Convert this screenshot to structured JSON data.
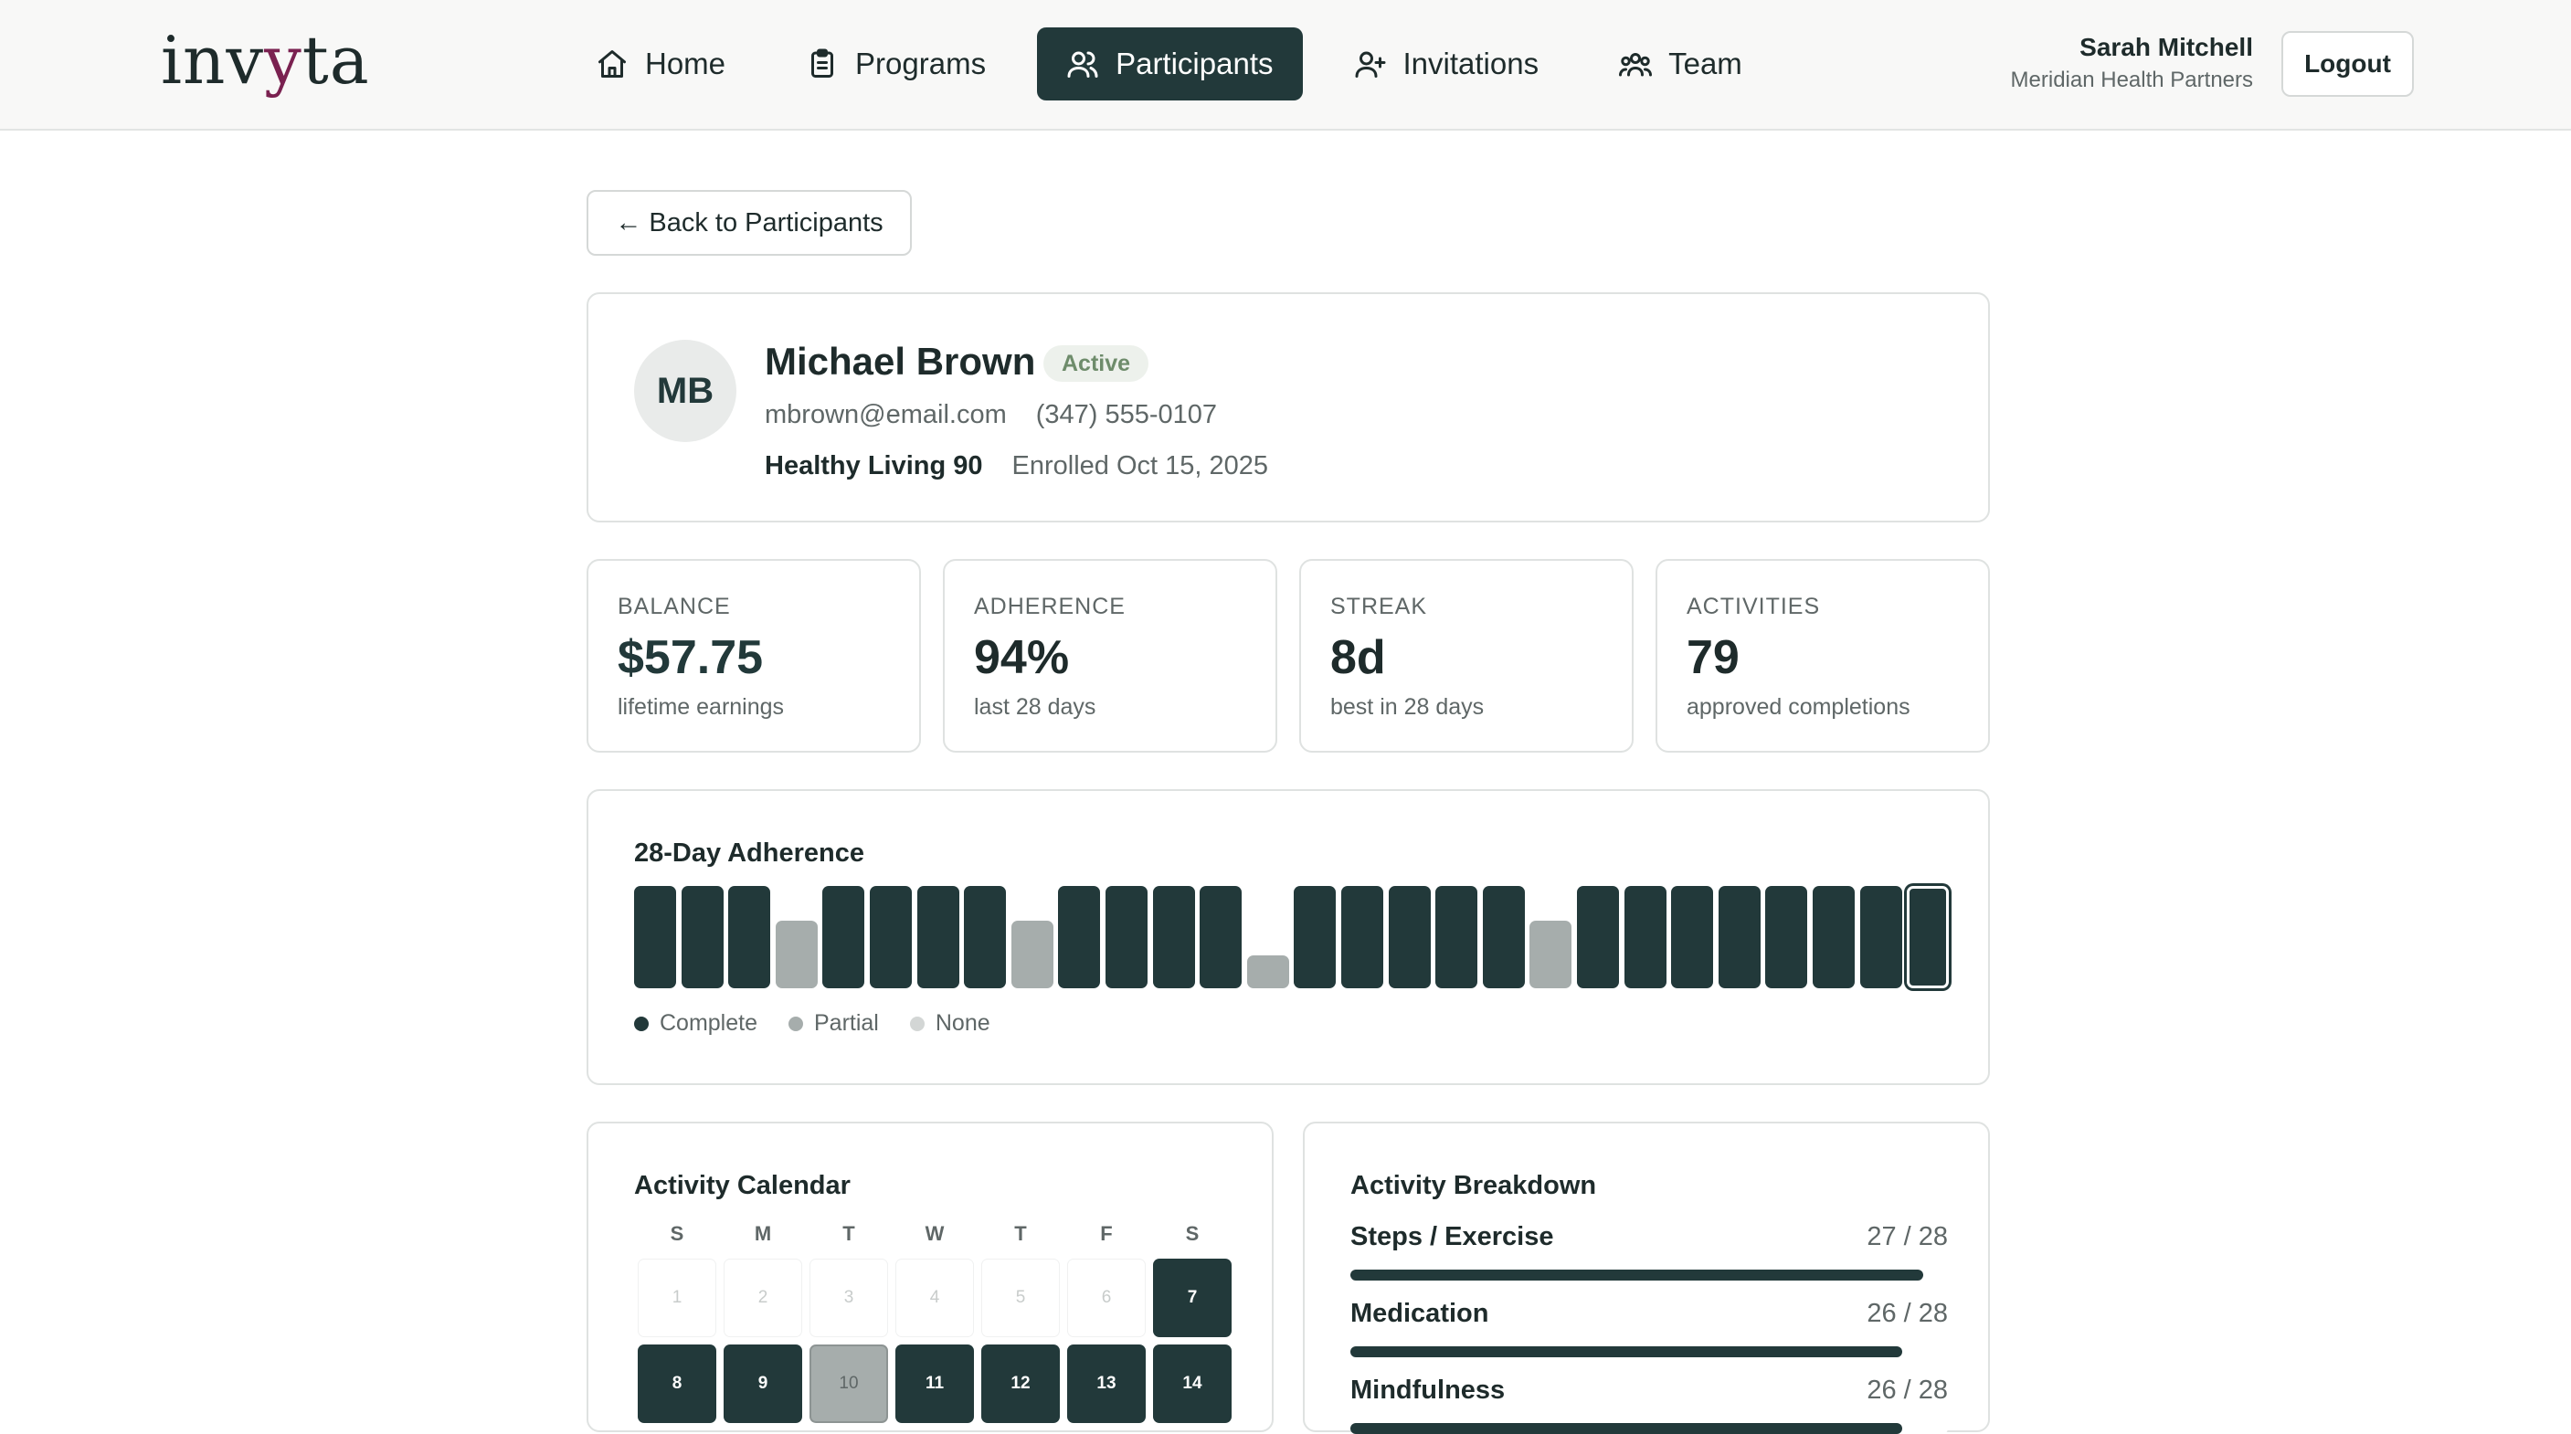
{
  "brand": {
    "logo_pre": "inv",
    "logo_accent": "y",
    "logo_post": "ta"
  },
  "nav": [
    {
      "label": "Home",
      "icon": "home-icon",
      "active": false
    },
    {
      "label": "Programs",
      "icon": "clipboard-icon",
      "active": false
    },
    {
      "label": "Participants",
      "icon": "users-icon",
      "active": true
    },
    {
      "label": "Invitations",
      "icon": "user-plus-icon",
      "active": false
    },
    {
      "label": "Team",
      "icon": "team-icon",
      "active": false
    }
  ],
  "user": {
    "name": "Sarah Mitchell",
    "org": "Meridian Health Partners",
    "logout_label": "Logout"
  },
  "back_label": "← Back to Participants",
  "participant": {
    "initials": "MB",
    "name": "Michael Brown",
    "status": "Active",
    "email": "mbrown@email.com",
    "phone": "(347) 555-0107",
    "program": "Healthy Living 90",
    "enrolled": "Enrolled Oct 15, 2025"
  },
  "stats": [
    {
      "label": "BALANCE",
      "value": "$57.75",
      "sub": "lifetime earnings"
    },
    {
      "label": "ADHERENCE",
      "value": "94%",
      "sub": "last 28 days"
    },
    {
      "label": "STREAK",
      "value": "8d",
      "sub": "best in 28 days"
    },
    {
      "label": "ACTIVITIES",
      "value": "79",
      "sub": "approved completions"
    }
  ],
  "adherence": {
    "title": "28-Day Adherence",
    "days": [
      "complete",
      "complete",
      "complete",
      "partial",
      "complete",
      "complete",
      "complete",
      "complete",
      "partial",
      "complete",
      "complete",
      "complete",
      "complete",
      "low",
      "complete",
      "complete",
      "complete",
      "complete",
      "complete",
      "partial",
      "complete",
      "complete",
      "complete",
      "complete",
      "complete",
      "complete",
      "complete",
      "complete"
    ],
    "legend": [
      {
        "label": "Complete",
        "color": "#22393a"
      },
      {
        "label": "Partial",
        "color": "#a6adac"
      },
      {
        "label": "None",
        "color": "#d3d6d5"
      }
    ]
  },
  "calendar": {
    "title": "Activity Calendar",
    "weekdays": [
      "S",
      "M",
      "T",
      "W",
      "T",
      "F",
      "S"
    ],
    "rows": [
      [
        {
          "d": "1",
          "s": "none"
        },
        {
          "d": "2",
          "s": "none"
        },
        {
          "d": "3",
          "s": "none"
        },
        {
          "d": "4",
          "s": "none"
        },
        {
          "d": "5",
          "s": "none"
        },
        {
          "d": "6",
          "s": "none"
        },
        {
          "d": "7",
          "s": "complete"
        }
      ],
      [
        {
          "d": "8",
          "s": "complete"
        },
        {
          "d": "9",
          "s": "complete"
        },
        {
          "d": "10",
          "s": "partial"
        },
        {
          "d": "11",
          "s": "complete"
        },
        {
          "d": "12",
          "s": "complete"
        },
        {
          "d": "13",
          "s": "complete"
        },
        {
          "d": "14",
          "s": "complete"
        }
      ]
    ]
  },
  "breakdown": {
    "title": "Activity Breakdown",
    "items": [
      {
        "name": "Steps / Exercise",
        "count": "27 / 28",
        "done": 27,
        "total": 28
      },
      {
        "name": "Medication",
        "count": "26 / 28",
        "done": 26,
        "total": 28
      },
      {
        "name": "Mindfulness",
        "count": "26 / 28",
        "done": 26,
        "total": 28
      }
    ]
  }
}
